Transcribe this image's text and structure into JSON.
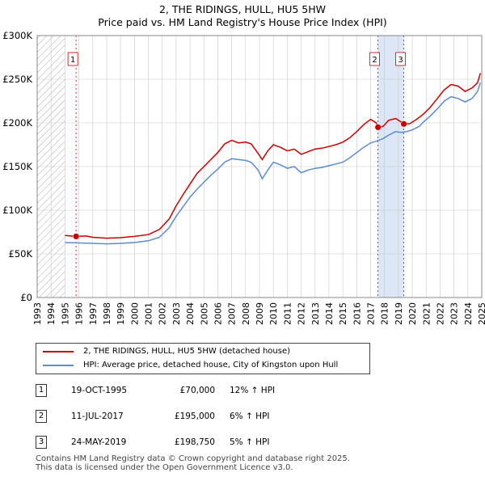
{
  "title_line1": "2, THE RIDINGS, HULL, HU5 5HW",
  "title_line2": "Price paid vs. HM Land Registry's House Price Index (HPI)",
  "colors": {
    "property": "#cc0000",
    "hpi": "#5b8ccf",
    "band": "#dde6f4",
    "grid": "#c8c8c8"
  },
  "chart_data": {
    "type": "line",
    "title": "Price paid vs. HM Land Registry's House Price Index (HPI)",
    "xlabel": "",
    "ylabel": "",
    "xlim": [
      1993,
      2025
    ],
    "ylim": [
      0,
      300000
    ],
    "y_ticks": [
      0,
      50000,
      100000,
      150000,
      200000,
      250000,
      300000
    ],
    "y_tick_labels": [
      "£0",
      "£50K",
      "£100K",
      "£150K",
      "£200K",
      "£250K",
      "£300K"
    ],
    "x_ticks": [
      "1993",
      "1994",
      "1995",
      "1996",
      "1997",
      "1998",
      "1999",
      "2000",
      "2001",
      "2002",
      "2003",
      "2004",
      "2005",
      "2006",
      "2007",
      "2008",
      "2009",
      "2010",
      "2011",
      "2012",
      "2013",
      "2014",
      "2015",
      "2016",
      "2017",
      "2018",
      "2019",
      "2020",
      "2021",
      "2022",
      "2023",
      "2024",
      "2025"
    ],
    "hatched_region": [
      1993,
      1995
    ],
    "shaded_band": [
      2017.53,
      2019.39
    ],
    "series": [
      {
        "name": "2, THE RIDINGS, HULL, HU5 5HW (detached house)",
        "points": [
          [
            1995,
            71000
          ],
          [
            1995.8,
            70000
          ],
          [
            1996.5,
            70500
          ],
          [
            1997,
            69000
          ],
          [
            1998,
            68000
          ],
          [
            1999,
            68500
          ],
          [
            2000,
            70000
          ],
          [
            2001,
            72000
          ],
          [
            2001.8,
            78000
          ],
          [
            2002.5,
            90000
          ],
          [
            2003,
            105000
          ],
          [
            2003.5,
            118000
          ],
          [
            2004,
            130000
          ],
          [
            2004.5,
            142000
          ],
          [
            2005,
            150000
          ],
          [
            2005.5,
            158000
          ],
          [
            2006,
            166000
          ],
          [
            2006.5,
            176000
          ],
          [
            2007,
            180000
          ],
          [
            2007.5,
            177000
          ],
          [
            2008,
            178000
          ],
          [
            2008.4,
            176000
          ],
          [
            2008.9,
            165000
          ],
          [
            2009.2,
            158000
          ],
          [
            2009.6,
            168000
          ],
          [
            2010,
            175000
          ],
          [
            2010.5,
            172000
          ],
          [
            2011,
            168000
          ],
          [
            2011.5,
            170000
          ],
          [
            2012,
            164000
          ],
          [
            2012.5,
            167000
          ],
          [
            2013,
            170000
          ],
          [
            2013.5,
            171000
          ],
          [
            2014,
            173000
          ],
          [
            2014.5,
            175000
          ],
          [
            2015,
            178000
          ],
          [
            2015.5,
            183000
          ],
          [
            2016,
            190000
          ],
          [
            2016.5,
            198000
          ],
          [
            2017,
            204000
          ],
          [
            2017.4,
            200000
          ],
          [
            2017.53,
            195000
          ],
          [
            2017.9,
            196000
          ],
          [
            2018.3,
            203000
          ],
          [
            2018.8,
            205000
          ],
          [
            2019.2,
            201000
          ],
          [
            2019.39,
            198750
          ],
          [
            2019.8,
            199000
          ],
          [
            2020.3,
            204000
          ],
          [
            2020.8,
            210000
          ],
          [
            2021.3,
            218000
          ],
          [
            2021.8,
            228000
          ],
          [
            2022.3,
            238000
          ],
          [
            2022.8,
            244000
          ],
          [
            2023.3,
            242000
          ],
          [
            2023.8,
            236000
          ],
          [
            2024.3,
            240000
          ],
          [
            2024.7,
            246000
          ],
          [
            2024.9,
            257000
          ]
        ]
      },
      {
        "name": "HPI: Average price, detached house, City of Kingston upon Hull",
        "points": [
          [
            1995,
            63000
          ],
          [
            1996,
            62500
          ],
          [
            1997,
            62000
          ],
          [
            1998,
            61500
          ],
          [
            1999,
            62000
          ],
          [
            2000,
            63000
          ],
          [
            2001,
            65000
          ],
          [
            2001.8,
            69000
          ],
          [
            2002.5,
            80000
          ],
          [
            2003,
            93000
          ],
          [
            2003.5,
            104000
          ],
          [
            2004,
            115000
          ],
          [
            2004.5,
            124000
          ],
          [
            2005,
            132000
          ],
          [
            2005.5,
            140000
          ],
          [
            2006,
            147000
          ],
          [
            2006.5,
            155000
          ],
          [
            2007,
            159000
          ],
          [
            2007.5,
            158000
          ],
          [
            2008,
            157000
          ],
          [
            2008.4,
            155000
          ],
          [
            2008.9,
            146000
          ],
          [
            2009.2,
            136000
          ],
          [
            2009.6,
            146000
          ],
          [
            2010,
            155000
          ],
          [
            2010.5,
            152000
          ],
          [
            2011,
            148000
          ],
          [
            2011.5,
            150000
          ],
          [
            2012,
            143000
          ],
          [
            2012.5,
            146000
          ],
          [
            2013,
            148000
          ],
          [
            2013.5,
            149000
          ],
          [
            2014,
            151000
          ],
          [
            2014.5,
            153000
          ],
          [
            2015,
            155000
          ],
          [
            2015.5,
            160000
          ],
          [
            2016,
            166000
          ],
          [
            2016.5,
            172000
          ],
          [
            2017,
            177000
          ],
          [
            2017.4,
            179000
          ],
          [
            2017.9,
            182000
          ],
          [
            2018.3,
            186000
          ],
          [
            2018.8,
            190000
          ],
          [
            2019.2,
            189000
          ],
          [
            2019.6,
            190000
          ],
          [
            2020,
            192000
          ],
          [
            2020.5,
            196000
          ],
          [
            2020.8,
            201000
          ],
          [
            2021.3,
            208000
          ],
          [
            2021.8,
            216000
          ],
          [
            2022.3,
            225000
          ],
          [
            2022.8,
            230000
          ],
          [
            2023.3,
            228000
          ],
          [
            2023.8,
            224000
          ],
          [
            2024.3,
            228000
          ],
          [
            2024.7,
            236000
          ],
          [
            2024.9,
            246000
          ]
        ]
      }
    ],
    "sales": [
      {
        "id": "1",
        "x": 1995.8,
        "y": 70000
      },
      {
        "id": "2",
        "x": 2017.53,
        "y": 195000
      },
      {
        "id": "3",
        "x": 2019.39,
        "y": 198750
      }
    ]
  },
  "legend": {
    "property_label": "2, THE RIDINGS, HULL, HU5 5HW (detached house)",
    "hpi_label": "HPI: Average price, detached house, City of Kingston upon Hull"
  },
  "transactions": [
    {
      "id": "1",
      "date": "19-OCT-1995",
      "price": "£70,000",
      "rel": "12% ↑ HPI"
    },
    {
      "id": "2",
      "date": "11-JUL-2017",
      "price": "£195,000",
      "rel": "6% ↑ HPI"
    },
    {
      "id": "3",
      "date": "24-MAY-2019",
      "price": "£198,750",
      "rel": "5% ↑ HPI"
    }
  ],
  "footer_line1": "Contains HM Land Registry data © Crown copyright and database right 2025.",
  "footer_line2": "This data is licensed under the Open Government Licence v3.0."
}
